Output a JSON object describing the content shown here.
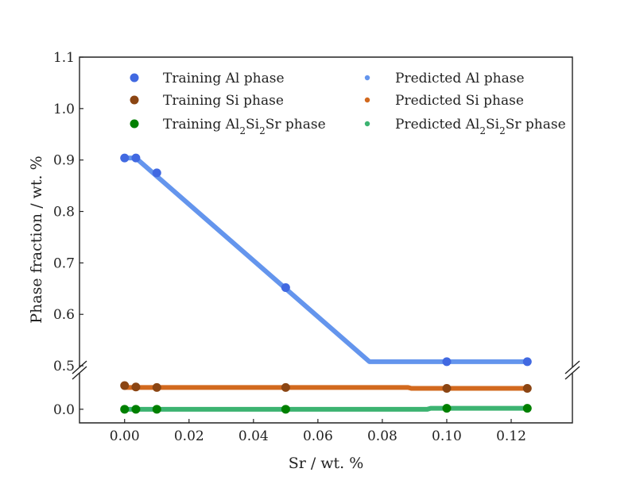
{
  "chart_data": {
    "type": "scatter",
    "xlabel": "Sr / wt. %",
    "ylabel": "Phase fraction / wt. %",
    "xlim": [
      -0.014,
      0.139
    ],
    "y_top_lim": [
      0.497,
      1.1
    ],
    "y_bottom_lim": [
      -0.03,
      0.08
    ],
    "x_ticks": [
      "0.00",
      "0.02",
      "0.04",
      "0.06",
      "0.08",
      "0.10",
      "0.12"
    ],
    "x_tick_values": [
      0.0,
      0.02,
      0.04,
      0.06,
      0.08,
      0.1,
      0.12
    ],
    "y_top_ticks": [
      "0.5",
      "0.6",
      "0.7",
      "0.8",
      "0.9",
      "1.0",
      "1.1"
    ],
    "y_top_tick_values": [
      0.5,
      0.6,
      0.7,
      0.8,
      0.9,
      1.0,
      1.1
    ],
    "y_bottom_ticks": [
      "0.0"
    ],
    "y_bottom_tick_values": [
      0.0
    ],
    "axis_break": true,
    "grid": false,
    "legend_position": "top",
    "series": [
      {
        "name_parts": [
          "Training Al phase",
          "",
          ""
        ],
        "kind": "training",
        "color": "#4169E1",
        "panel": "top",
        "x": [
          0.0,
          0.0035,
          0.01,
          0.05,
          0.1,
          0.125
        ],
        "y": [
          0.904,
          0.904,
          0.875,
          0.652,
          0.508,
          0.508
        ]
      },
      {
        "name_parts": [
          "Training Si phase",
          "",
          ""
        ],
        "kind": "training",
        "color": "#8B4513",
        "panel": "bottom",
        "x": [
          0.0,
          0.0035,
          0.01,
          0.05,
          0.1,
          0.125
        ],
        "y": [
          0.052,
          0.049,
          0.048,
          0.048,
          0.046,
          0.046
        ]
      },
      {
        "name_parts": [
          "Training Al",
          "2",
          "Si",
          "2",
          "Sr phase"
        ],
        "kind": "training",
        "color": "#008000",
        "panel": "bottom",
        "x": [
          0.0,
          0.0035,
          0.01,
          0.05,
          0.1,
          0.125
        ],
        "y": [
          0.0,
          0.0,
          0.0,
          0.0,
          0.002,
          0.002
        ]
      },
      {
        "name_parts": [
          "Predicted Al phase",
          "",
          ""
        ],
        "kind": "predicted",
        "color": "#6495ED",
        "panel": "top",
        "x": [
          0.0,
          0.0035,
          0.076,
          0.125
        ],
        "y": [
          0.904,
          0.904,
          0.508,
          0.508
        ]
      },
      {
        "name_parts": [
          "Predicted Si phase",
          "",
          ""
        ],
        "kind": "predicted",
        "color": "#D2691E",
        "panel": "bottom",
        "x": [
          0.0,
          0.088,
          0.089,
          0.125
        ],
        "y": [
          0.048,
          0.048,
          0.046,
          0.046
        ]
      },
      {
        "name_parts": [
          "Predicted Al",
          "2",
          "Si",
          "2",
          "Sr phase"
        ],
        "kind": "predicted",
        "color": "#3CB371",
        "panel": "bottom",
        "x": [
          0.0,
          0.094,
          0.095,
          0.125
        ],
        "y": [
          0.0,
          0.0,
          0.002,
          0.002
        ]
      }
    ]
  }
}
